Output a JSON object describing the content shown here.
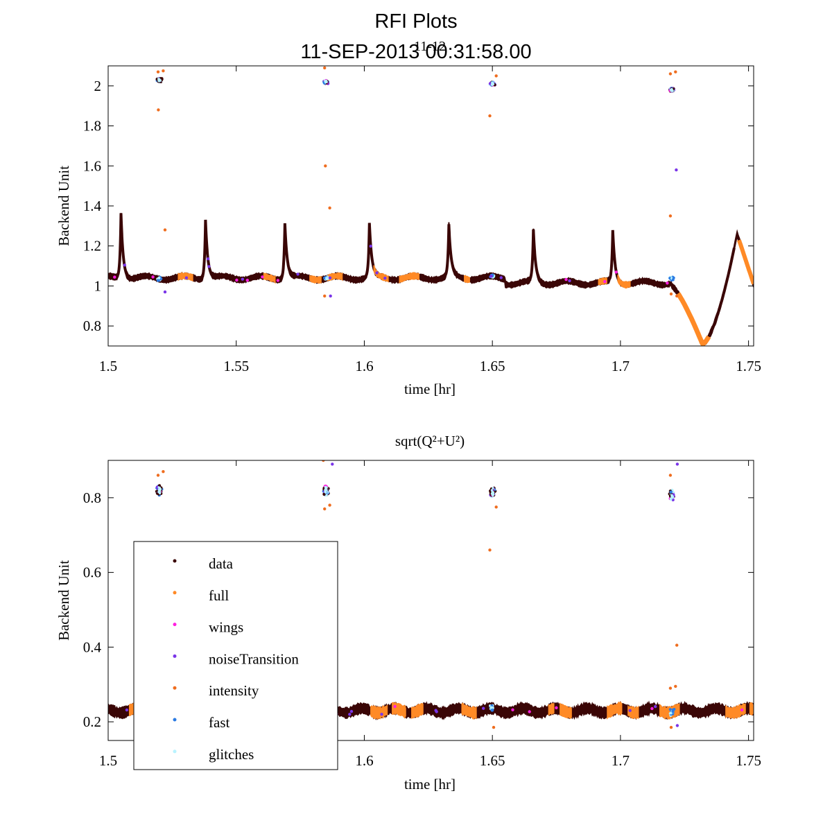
{
  "figure": {
    "title": "RFI Plots",
    "subtitle": "11-SEP-2013 00:31:58.00",
    "overlay_label": "11-12"
  },
  "colors": {
    "data": "#3a0606",
    "full": "#ff8a26",
    "wings": "#ff1fe0",
    "noiseTransition": "#7a35e8",
    "intensity": "#ef6d1f",
    "fast": "#2b7be3",
    "glitches": "#b9f3ff",
    "axis": "#000000"
  },
  "chart_data": [
    {
      "type": "scatter",
      "title": "",
      "xlabel": "time [hr]",
      "ylabel": "Backend Unit",
      "xlim": [
        1.5,
        1.752
      ],
      "ylim": [
        0.7,
        2.1
      ],
      "xticks": [
        1.5,
        1.55,
        1.6,
        1.65,
        1.7,
        1.75
      ],
      "xtick_labels": [
        "1.5",
        "1.55",
        "1.6",
        "1.65",
        "1.7",
        "1.75"
      ],
      "yticks": [
        0.8,
        1.0,
        1.2,
        1.4,
        1.6,
        1.8,
        2.0
      ],
      "ytick_labels": [
        "0.8",
        "1",
        "1.2",
        "1.4",
        "1.6",
        "1.8",
        "2"
      ],
      "baseline": 1.04,
      "spikes": [
        {
          "x": 1.505,
          "y": 1.37
        },
        {
          "x": 1.538,
          "y": 1.34
        },
        {
          "x": 1.569,
          "y": 1.32
        },
        {
          "x": 1.602,
          "y": 1.31
        },
        {
          "x": 1.633,
          "y": 1.3
        },
        {
          "x": 1.666,
          "y": 1.3
        },
        {
          "x": 1.697,
          "y": 1.3
        }
      ],
      "noise_cal_clusters": [
        {
          "x": 1.52,
          "y": 2.03
        },
        {
          "x": 1.585,
          "y": 2.02
        },
        {
          "x": 1.65,
          "y": 2.01
        },
        {
          "x": 1.72,
          "y": 1.98
        }
      ],
      "outliers": [
        {
          "x": 1.5195,
          "y": 2.07
        },
        {
          "x": 1.5215,
          "y": 2.075
        },
        {
          "x": 1.5196,
          "y": 1.88
        },
        {
          "x": 1.5222,
          "y": 1.28
        },
        {
          "x": 1.5222,
          "y": 0.97
        },
        {
          "x": 1.5845,
          "y": 2.09
        },
        {
          "x": 1.5848,
          "y": 1.6
        },
        {
          "x": 1.5865,
          "y": 1.39
        },
        {
          "x": 1.5845,
          "y": 0.95
        },
        {
          "x": 1.5868,
          "y": 0.95
        },
        {
          "x": 1.649,
          "y": 1.85
        },
        {
          "x": 1.6515,
          "y": 2.05
        },
        {
          "x": 1.7195,
          "y": 2.06
        },
        {
          "x": 1.7215,
          "y": 2.07
        },
        {
          "x": 1.7218,
          "y": 1.58
        },
        {
          "x": 1.7195,
          "y": 1.35
        },
        {
          "x": 1.7198,
          "y": 0.96
        },
        {
          "x": 1.722,
          "y": 0.95
        }
      ],
      "dip": {
        "start": 1.72,
        "min_x": 1.732,
        "min_y": 0.71,
        "peak_x": 1.7455,
        "peak_y": 1.26,
        "end_x": 1.752,
        "end_y": 1.01
      }
    },
    {
      "type": "scatter",
      "title": "sqrt(Q²+U²)",
      "xlabel": "time [hr]",
      "ylabel": "Backend Unit",
      "xlim": [
        1.5,
        1.752
      ],
      "ylim": [
        0.15,
        0.9
      ],
      "xticks": [
        1.5,
        1.55,
        1.6,
        1.65,
        1.7,
        1.75
      ],
      "xtick_labels": [
        "1.5",
        "1.55",
        "1.6",
        "1.65",
        "1.7",
        "1.75"
      ],
      "yticks": [
        0.2,
        0.4,
        0.6,
        0.8
      ],
      "ytick_labels": [
        "0.2",
        "0.4",
        "0.6",
        "0.8"
      ],
      "baseline": 0.23,
      "noise_cal_clusters": [
        {
          "x": 1.52,
          "y": 0.82
        },
        {
          "x": 1.585,
          "y": 0.82
        },
        {
          "x": 1.65,
          "y": 0.815
        },
        {
          "x": 1.72,
          "y": 0.805
        }
      ],
      "outliers": [
        {
          "x": 1.5195,
          "y": 0.86
        },
        {
          "x": 1.5215,
          "y": 0.87
        },
        {
          "x": 1.5845,
          "y": 0.77
        },
        {
          "x": 1.5865,
          "y": 0.78
        },
        {
          "x": 1.5875,
          "y": 0.89
        },
        {
          "x": 1.584,
          "y": 0.9
        },
        {
          "x": 1.649,
          "y": 0.66
        },
        {
          "x": 1.6515,
          "y": 0.775
        },
        {
          "x": 1.7195,
          "y": 0.86
        },
        {
          "x": 1.7222,
          "y": 0.89
        },
        {
          "x": 1.722,
          "y": 0.405
        },
        {
          "x": 1.7195,
          "y": 0.29
        },
        {
          "x": 1.7215,
          "y": 0.295
        },
        {
          "x": 1.7198,
          "y": 0.185
        },
        {
          "x": 1.7222,
          "y": 0.19
        },
        {
          "x": 1.6505,
          "y": 0.185
        }
      ],
      "legend": {
        "placement": "lower-left",
        "entries": [
          "data",
          "full",
          "wings",
          "noiseTransition",
          "intensity",
          "fast",
          "glitches"
        ]
      }
    }
  ]
}
